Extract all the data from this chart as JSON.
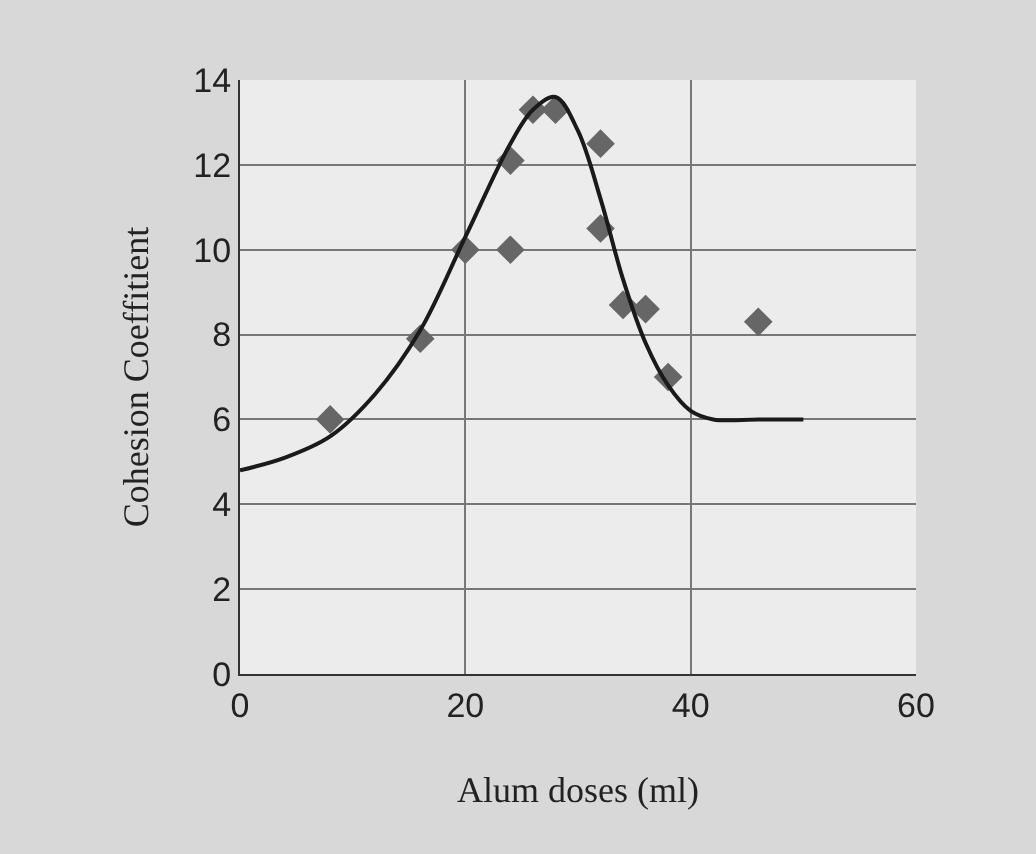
{
  "chart_data": {
    "type": "scatter",
    "xlabel": "Alum doses (ml)",
    "ylabel": "Cohesion Coeffitient",
    "xlim": [
      0,
      60
    ],
    "xticks": [
      0,
      20,
      40,
      60
    ],
    "ylim": [
      0,
      14
    ],
    "yticks": [
      0,
      2,
      4,
      6,
      8,
      10,
      12,
      14
    ],
    "grid": true,
    "series": [
      {
        "marker": "diamond",
        "color": "#666666",
        "x": [
          8,
          16,
          20,
          24,
          24,
          26,
          28,
          32,
          32,
          34,
          36,
          38,
          46
        ],
        "values": [
          6,
          7.9,
          10,
          10,
          12.1,
          13.3,
          13.3,
          12.5,
          10.5,
          8.7,
          8.6,
          7,
          8.3
        ]
      },
      {
        "type": "line",
        "marker": "none",
        "color": "#1a1a1a",
        "x": [
          0,
          4,
          8,
          12,
          16,
          20,
          24,
          26,
          28,
          30,
          32,
          34,
          36,
          38,
          40,
          42,
          46,
          50
        ],
        "values": [
          4.8,
          5.1,
          5.6,
          6.6,
          8.1,
          10.3,
          12.5,
          13.3,
          13.6,
          12.8,
          11.2,
          9.3,
          7.8,
          6.8,
          6.2,
          6,
          6,
          6
        ]
      }
    ]
  }
}
